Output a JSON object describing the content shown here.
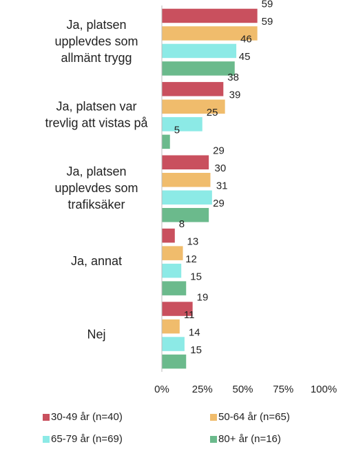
{
  "chart_data": {
    "type": "bar",
    "orientation": "horizontal",
    "categories": [
      [
        "Ja, platsen",
        "upplevdes som",
        "allmänt trygg"
      ],
      [
        "Ja, platsen var",
        "trevlig att vistas på"
      ],
      [
        "Ja, platsen",
        "upplevdes som",
        "trafiksäker"
      ],
      [
        "Ja, annat"
      ],
      [
        "Nej"
      ]
    ],
    "series": [
      {
        "name": "30-49 år (n=40)",
        "color": "#c9505e",
        "values": [
          59,
          38,
          29,
          8,
          19
        ]
      },
      {
        "name": "50-64 år (n=65)",
        "color": "#f0bc6c",
        "values": [
          59,
          39,
          30,
          13,
          11
        ]
      },
      {
        "name": "65-79 år (n=69)",
        "color": "#8ceae6",
        "values": [
          46,
          25,
          31,
          12,
          14
        ]
      },
      {
        "name": "80+ år (n=16)",
        "color": "#6bba8c",
        "values": [
          45,
          5,
          29,
          15,
          15
        ]
      }
    ],
    "xlim": [
      0,
      100
    ],
    "xticks": [
      {
        "value": 0,
        "label": "0%"
      },
      {
        "value": 25,
        "label": "25%"
      },
      {
        "value": 50,
        "label": "50%"
      },
      {
        "value": 75,
        "label": "75%"
      },
      {
        "value": 100,
        "label": "100%"
      }
    ],
    "legend": "bottom"
  }
}
